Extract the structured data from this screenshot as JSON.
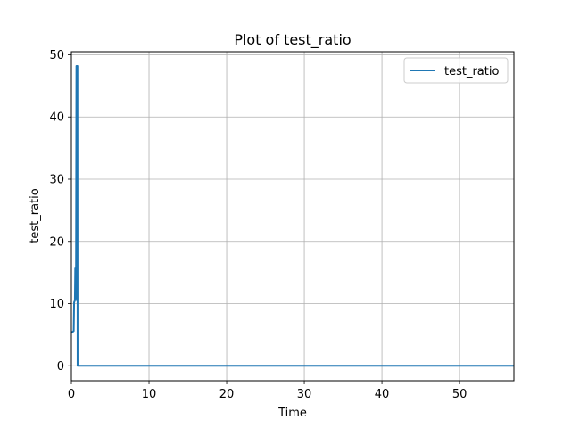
{
  "chart_data": {
    "type": "line",
    "title": "Plot of test_ratio",
    "xlabel": "Time",
    "ylabel": "test_ratio",
    "xlim": [
      0,
      57
    ],
    "ylim": [
      -2.4,
      50.5
    ],
    "xticks": [
      0,
      10,
      20,
      30,
      40,
      50
    ],
    "yticks": [
      0,
      10,
      20,
      30,
      40,
      50
    ],
    "grid": true,
    "legend_position": "top-right",
    "series": [
      {
        "name": "test_ratio",
        "color": "#1f77b4",
        "x": [
          0,
          0.3,
          0.35,
          0.45,
          0.5,
          0.55,
          0.6,
          0.65,
          0.7,
          0.72,
          0.74,
          0.78,
          0.8,
          0.85,
          5,
          10,
          20,
          30,
          40,
          50,
          57
        ],
        "y": [
          5.3,
          5.6,
          10.2,
          10.5,
          15.8,
          10.8,
          16.0,
          48.2,
          48.2,
          10.5,
          48.2,
          48.2,
          0,
          0,
          0,
          0,
          0,
          0,
          0,
          0,
          0
        ]
      }
    ]
  }
}
